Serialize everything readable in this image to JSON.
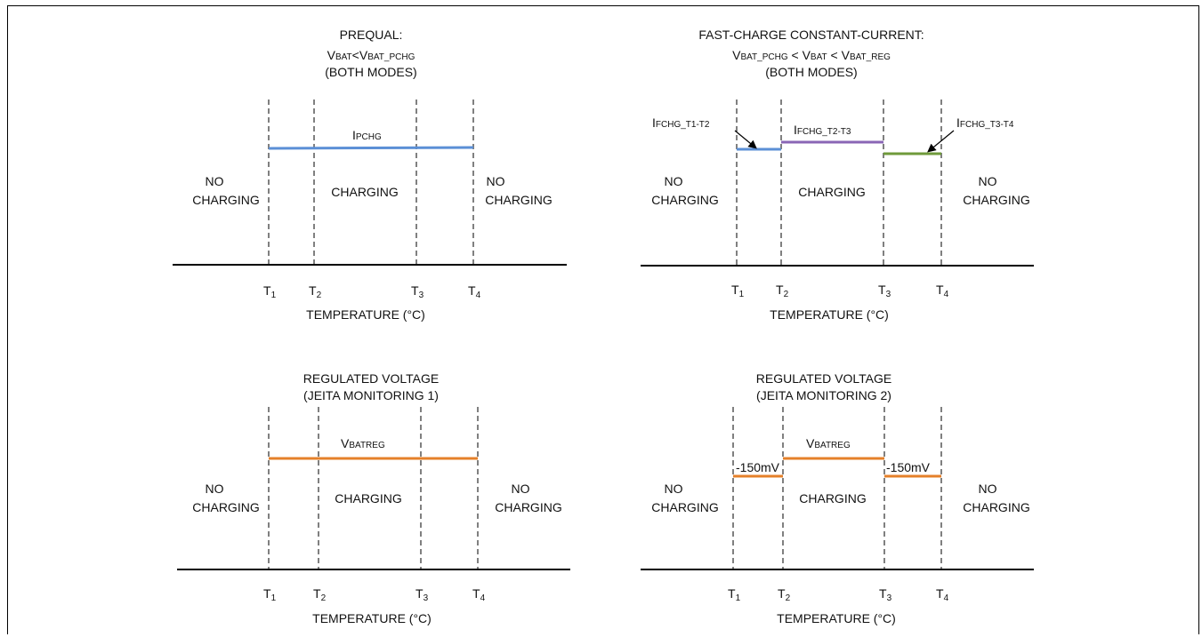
{
  "colors": {
    "blue": "#5b8fd6",
    "purple": "#8a66b5",
    "green": "#6f9a3a",
    "orange": "#e5802a",
    "axis": "#000000"
  },
  "panels": {
    "prequal": {
      "title": [
        "PREQUAL:",
        "(BOTH MODES)"
      ],
      "condition": {
        "v1": "V",
        "s1": "BAT",
        "lt": "<",
        "v2": "V",
        "s2": "BAT_PCHG"
      },
      "level": {
        "main": "I",
        "sub": "PCHG"
      },
      "left": [
        "NO",
        "CHARGING"
      ],
      "center": "CHARGING",
      "right": [
        "NO",
        "CHARGING"
      ],
      "ticks": [
        "T",
        "T",
        "T",
        "T"
      ],
      "tick_subs": [
        "1",
        "2",
        "3",
        "4"
      ],
      "xlabel": "TEMPERATURE (°C)"
    },
    "fastcharge": {
      "title": [
        "FAST-CHARGE CONSTANT-CURRENT:",
        "(BOTH MODES)"
      ],
      "condition": {
        "v1": "V",
        "s1": "BAT_PCHG",
        "lt1": " < ",
        "v2": "V",
        "s2": "BAT",
        "lt2": " < ",
        "v3": "V",
        "s3": "BAT_REG"
      },
      "levels": [
        {
          "main": "I",
          "sub": "FCHG_T1-T2"
        },
        {
          "main": "I",
          "sub": "FCHG_T2-T3"
        },
        {
          "main": "I",
          "sub": "FCHG_T3-T4"
        }
      ],
      "left": [
        "NO",
        "CHARGING"
      ],
      "center": "CHARGING",
      "right": [
        "NO",
        "CHARGING"
      ],
      "ticks": [
        "T",
        "T",
        "T",
        "T"
      ],
      "tick_subs": [
        "1",
        "2",
        "3",
        "4"
      ],
      "xlabel": "TEMPERATURE (°C)"
    },
    "jeita1": {
      "title": [
        "REGULATED VOLTAGE",
        "(JEITA MONITORING 1)"
      ],
      "level": {
        "main": "V",
        "sub": "BATREG"
      },
      "left": [
        "NO",
        "CHARGING"
      ],
      "center": "CHARGING",
      "right": [
        "NO",
        "CHARGING"
      ],
      "ticks": [
        "T",
        "T",
        "T",
        "T"
      ],
      "tick_subs": [
        "1",
        "2",
        "3",
        "4"
      ],
      "xlabel": "TEMPERATURE (°C)"
    },
    "jeita2": {
      "title": [
        "REGULATED VOLTAGE",
        "(JEITA MONITORING 2)"
      ],
      "level": {
        "main": "V",
        "sub": "BATREG"
      },
      "offsets": [
        "-150mV",
        "-150mV"
      ],
      "left": [
        "NO",
        "CHARGING"
      ],
      "center": "CHARGING",
      "right": [
        "NO",
        "CHARGING"
      ],
      "ticks": [
        "T",
        "T",
        "T",
        "T"
      ],
      "tick_subs": [
        "1",
        "2",
        "3",
        "4"
      ],
      "xlabel": "TEMPERATURE (°C)"
    }
  }
}
